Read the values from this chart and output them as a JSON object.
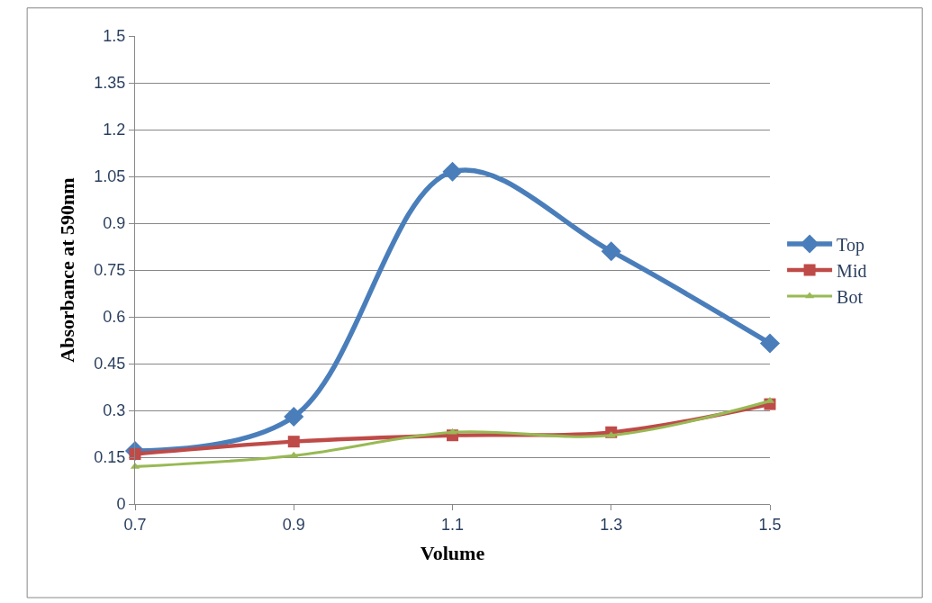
{
  "chart_data": {
    "type": "line",
    "xlabel": "Volume",
    "ylabel": "Absorbance at 590nm",
    "x": [
      0.7,
      0.9,
      1.1,
      1.3,
      1.5
    ],
    "series": [
      {
        "name": "Top",
        "color": "#4a7ebb",
        "marker": "diamond",
        "values": [
          0.17,
          0.28,
          1.065,
          0.81,
          0.515
        ]
      },
      {
        "name": "Mid",
        "color": "#be4b48",
        "marker": "square",
        "values": [
          0.16,
          0.2,
          0.22,
          0.23,
          0.32
        ]
      },
      {
        "name": "Bot",
        "color": "#98b954",
        "marker": "triangle",
        "values": [
          0.12,
          0.155,
          0.23,
          0.22,
          0.33
        ]
      }
    ],
    "xlim": [
      0.7,
      1.5
    ],
    "xticks": [
      0.7,
      0.9,
      1.1,
      1.3,
      1.5
    ],
    "ylim": [
      0,
      1.5
    ],
    "yticks": [
      0,
      0.15,
      0.3,
      0.45,
      0.6,
      0.75,
      0.9,
      1.05,
      1.2,
      1.35,
      1.5
    ],
    "grid": "y",
    "legend": "right",
    "line_style": "solid"
  }
}
